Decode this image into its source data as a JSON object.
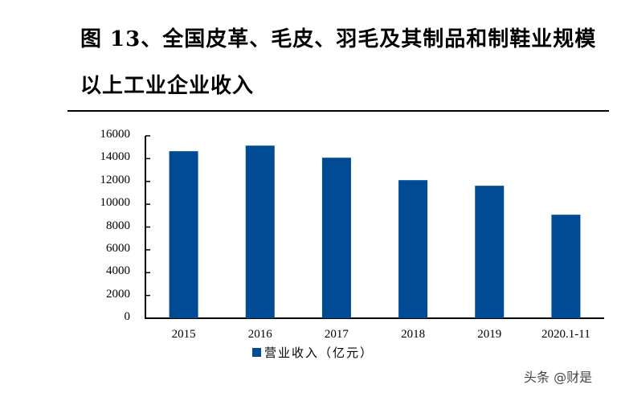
{
  "title": {
    "line1": "图 13、全国皮革、毛皮、羽毛及其制品和制鞋业规模",
    "line2": "以上工业企业收入"
  },
  "chart_data": {
    "type": "bar",
    "title": "图 13、全国皮革、毛皮、羽毛及其制品和制鞋业规模以上工业企业收入",
    "categories": [
      "2015",
      "2016",
      "2017",
      "2018",
      "2019",
      "2020.1-11"
    ],
    "series": [
      {
        "name": "营业收入（亿元）",
        "values": [
          14650,
          15140,
          14080,
          12110,
          11620,
          9080
        ],
        "color": "#004b93"
      }
    ],
    "xlabel": "",
    "ylabel": "",
    "ylim": [
      0,
      16000
    ],
    "yticks": [
      0,
      2000,
      4000,
      6000,
      8000,
      10000,
      12000,
      14000,
      16000
    ],
    "grid": false,
    "legend_position": "bottom"
  },
  "legend": {
    "label": "营业收入（亿元）"
  },
  "watermark": "头条 @财是"
}
